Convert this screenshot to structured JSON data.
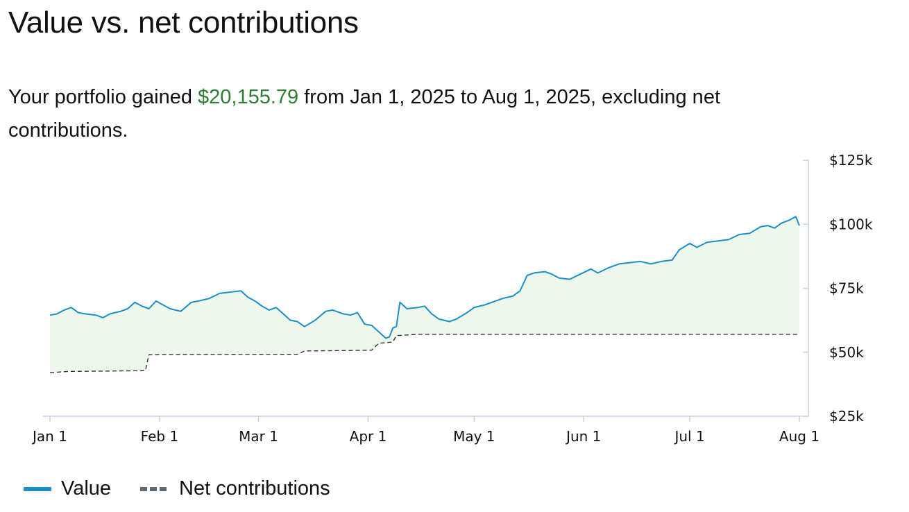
{
  "header": {
    "title": "Value vs. net contributions",
    "summary_prefix": "Your portfolio gained ",
    "summary_amount": "$20,155.79",
    "summary_suffix": " from Jan 1, 2025 to Aug 1, 2025, excluding net contributions."
  },
  "colors": {
    "value_line": "#1a8fc9",
    "value_fill": "#edf7ec",
    "contrib_line": "#333333",
    "gain_text": "#2e7d32",
    "axis": "#c7d3e0"
  },
  "legend": {
    "value_label": "Value",
    "contrib_label": "Net contributions"
  },
  "chart_data": {
    "type": "line",
    "x_range": [
      "2025-01-01",
      "2025-08-01"
    ],
    "y_range": [
      25000,
      125000
    ],
    "y_ticks": [
      {
        "value": 125000,
        "label": "$125k"
      },
      {
        "value": 100000,
        "label": "$100k"
      },
      {
        "value": 75000,
        "label": "$75k"
      },
      {
        "value": 50000,
        "label": "$50k"
      },
      {
        "value": 25000,
        "label": "$25k"
      }
    ],
    "x_ticks": [
      {
        "date": "2025-01-01",
        "label": "Jan 1"
      },
      {
        "date": "2025-02-01",
        "label": "Feb 1"
      },
      {
        "date": "2025-03-01",
        "label": "Mar 1"
      },
      {
        "date": "2025-04-01",
        "label": "Apr 1"
      },
      {
        "date": "2025-05-01",
        "label": "May 1"
      },
      {
        "date": "2025-06-01",
        "label": "Jun 1"
      },
      {
        "date": "2025-07-01",
        "label": "Jul 1"
      },
      {
        "date": "2025-08-01",
        "label": "Aug 1"
      }
    ],
    "legend_position": "bottom-left",
    "grid": false,
    "series": [
      {
        "name": "Value",
        "style": "solid",
        "points": [
          [
            "2025-01-01",
            64500
          ],
          [
            "2025-01-03",
            65000
          ],
          [
            "2025-01-05",
            66500
          ],
          [
            "2025-01-07",
            67500
          ],
          [
            "2025-01-09",
            65500
          ],
          [
            "2025-01-11",
            65000
          ],
          [
            "2025-01-14",
            64500
          ],
          [
            "2025-01-16",
            63500
          ],
          [
            "2025-01-18",
            65000
          ],
          [
            "2025-01-21",
            66000
          ],
          [
            "2025-01-23",
            67000
          ],
          [
            "2025-01-25",
            69500
          ],
          [
            "2025-01-27",
            68000
          ],
          [
            "2025-01-29",
            67000
          ],
          [
            "2025-01-31",
            70000
          ],
          [
            "2025-02-02",
            68500
          ],
          [
            "2025-02-04",
            67000
          ],
          [
            "2025-02-07",
            66000
          ],
          [
            "2025-02-10",
            69500
          ],
          [
            "2025-02-12",
            70000
          ],
          [
            "2025-02-15",
            71000
          ],
          [
            "2025-02-18",
            73000
          ],
          [
            "2025-02-21",
            73500
          ],
          [
            "2025-02-24",
            74000
          ],
          [
            "2025-02-26",
            71500
          ],
          [
            "2025-02-28",
            70000
          ],
          [
            "2025-03-02",
            68000
          ],
          [
            "2025-03-04",
            66500
          ],
          [
            "2025-03-06",
            67500
          ],
          [
            "2025-03-08",
            65000
          ],
          [
            "2025-03-10",
            62500
          ],
          [
            "2025-03-12",
            62000
          ],
          [
            "2025-03-14",
            60000
          ],
          [
            "2025-03-17",
            62500
          ],
          [
            "2025-03-20",
            66000
          ],
          [
            "2025-03-22",
            66500
          ],
          [
            "2025-03-25",
            65000
          ],
          [
            "2025-03-27",
            64500
          ],
          [
            "2025-03-29",
            65500
          ],
          [
            "2025-03-31",
            61000
          ],
          [
            "2025-04-02",
            60500
          ],
          [
            "2025-04-04",
            58000
          ],
          [
            "2025-04-06",
            55500
          ],
          [
            "2025-04-07",
            56000
          ],
          [
            "2025-04-08",
            59500
          ],
          [
            "2025-04-09",
            60000
          ],
          [
            "2025-04-10",
            69500
          ],
          [
            "2025-04-12",
            67000
          ],
          [
            "2025-04-15",
            67500
          ],
          [
            "2025-04-17",
            68000
          ],
          [
            "2025-04-19",
            65000
          ],
          [
            "2025-04-21",
            63000
          ],
          [
            "2025-04-24",
            62000
          ],
          [
            "2025-04-26",
            63000
          ],
          [
            "2025-04-29",
            65500
          ],
          [
            "2025-05-01",
            67500
          ],
          [
            "2025-05-04",
            68500
          ],
          [
            "2025-05-07",
            70000
          ],
          [
            "2025-05-09",
            71000
          ],
          [
            "2025-05-12",
            72000
          ],
          [
            "2025-05-14",
            74000
          ],
          [
            "2025-05-16",
            80000
          ],
          [
            "2025-05-18",
            81000
          ],
          [
            "2025-05-21",
            81500
          ],
          [
            "2025-05-23",
            80500
          ],
          [
            "2025-05-25",
            79000
          ],
          [
            "2025-05-28",
            78500
          ],
          [
            "2025-05-31",
            80500
          ],
          [
            "2025-06-03",
            82500
          ],
          [
            "2025-06-05",
            81000
          ],
          [
            "2025-06-08",
            83000
          ],
          [
            "2025-06-11",
            84500
          ],
          [
            "2025-06-14",
            85000
          ],
          [
            "2025-06-17",
            85500
          ],
          [
            "2025-06-20",
            84500
          ],
          [
            "2025-06-23",
            85500
          ],
          [
            "2025-06-26",
            86000
          ],
          [
            "2025-06-28",
            90000
          ],
          [
            "2025-07-01",
            92500
          ],
          [
            "2025-07-03",
            91000
          ],
          [
            "2025-07-06",
            93000
          ],
          [
            "2025-07-09",
            93500
          ],
          [
            "2025-07-12",
            94000
          ],
          [
            "2025-07-15",
            96000
          ],
          [
            "2025-07-18",
            96500
          ],
          [
            "2025-07-21",
            99000
          ],
          [
            "2025-07-23",
            99500
          ],
          [
            "2025-07-25",
            98500
          ],
          [
            "2025-07-27",
            100500
          ],
          [
            "2025-07-29",
            101500
          ],
          [
            "2025-07-31",
            103000
          ],
          [
            "2025-08-01",
            99500
          ]
        ]
      },
      {
        "name": "Net contributions",
        "style": "dashed",
        "points": [
          [
            "2025-01-01",
            42000
          ],
          [
            "2025-01-06",
            42500
          ],
          [
            "2025-01-28",
            42800
          ],
          [
            "2025-01-29",
            49000
          ],
          [
            "2025-03-12",
            49200
          ],
          [
            "2025-03-14",
            50500
          ],
          [
            "2025-04-02",
            50800
          ],
          [
            "2025-04-04",
            53500
          ],
          [
            "2025-04-08",
            54000
          ],
          [
            "2025-04-09",
            56500
          ],
          [
            "2025-04-15",
            57000
          ],
          [
            "2025-08-01",
            57000
          ]
        ]
      }
    ]
  }
}
